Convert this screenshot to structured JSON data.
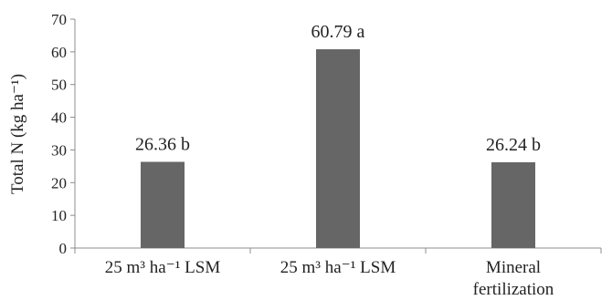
{
  "chart_data": {
    "type": "bar",
    "title": "",
    "xlabel": "",
    "ylabel": "Total N (kg ha⁻¹)",
    "ylim": [
      0,
      70
    ],
    "yticks": [
      0,
      10,
      20,
      30,
      40,
      50,
      60,
      70
    ],
    "grid": false,
    "legend": "none",
    "categories": [
      [
        "25 m³ ha⁻¹ LSM"
      ],
      [
        "25 m³ ha⁻¹ LSM"
      ],
      [
        "Mineral",
        "fertilization"
      ]
    ],
    "values": [
      26.36,
      60.79,
      26.24
    ],
    "data_labels": [
      "26.36 b",
      "60.79 a",
      "26.24 b"
    ],
    "colors": {
      "bar": "#666666",
      "axis": "#8c8c8c"
    }
  }
}
